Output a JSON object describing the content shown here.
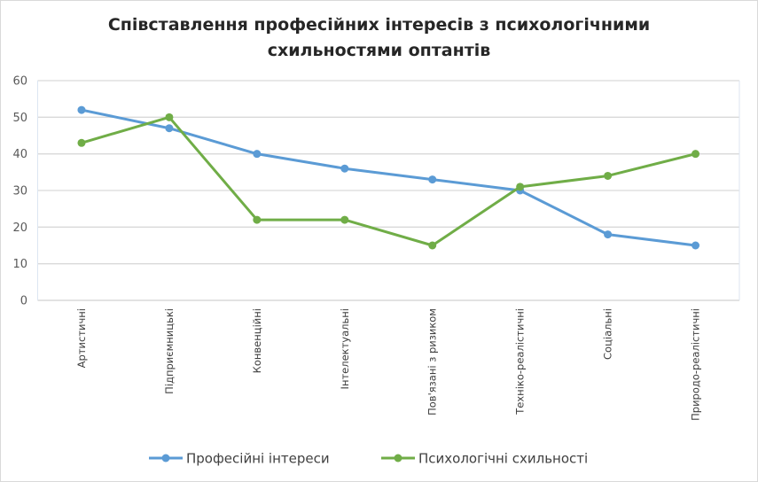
{
  "chart_data": {
    "type": "line",
    "title": "Співставлення  професійних інтересів з психологічними схильностями оптантів",
    "title_lines": [
      "Співставлення  професійних інтересів з психологічними",
      "схильностями оптантів"
    ],
    "categories": [
      "Артистичні",
      "Підприємницькі",
      "Конвенційні",
      "Інтелектуальні",
      "Пов'язані з ризиком",
      "Техніко-реалістичні",
      "Соціальні",
      "Природо-реалістичні"
    ],
    "series": [
      {
        "name": "Професійні інтереси",
        "color": "#5b9bd5",
        "values": [
          52,
          47,
          40,
          36,
          33,
          30,
          18,
          15
        ]
      },
      {
        "name": "Психологічні схильності",
        "color": "#70ad47",
        "values": [
          43,
          50,
          22,
          22,
          15,
          31,
          34,
          40
        ]
      }
    ],
    "ylim": [
      0,
      60
    ],
    "yticks": [
      0,
      10,
      20,
      30,
      40,
      50,
      60
    ],
    "grid": true,
    "legend": "bottom",
    "xlabel": "",
    "ylabel": ""
  }
}
